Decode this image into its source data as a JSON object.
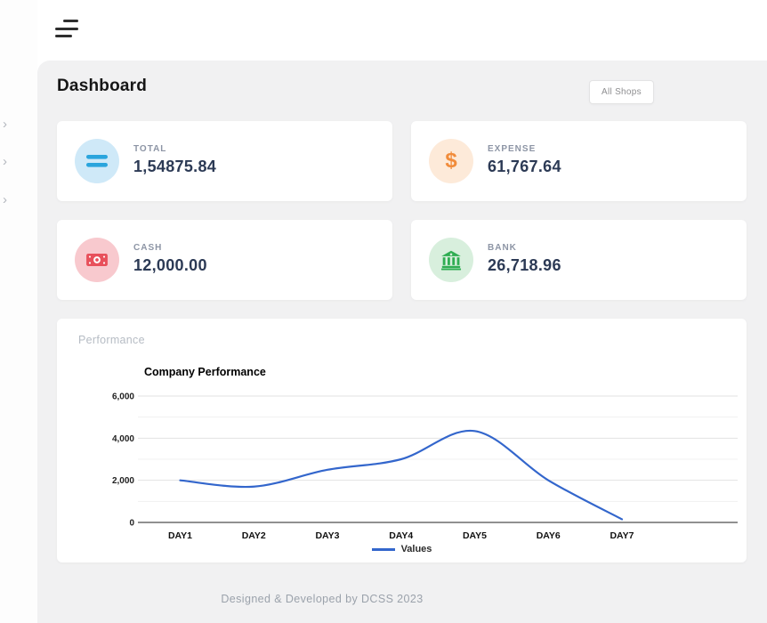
{
  "topbar": {
    "menu_icon": "hamburger-icon"
  },
  "sidebar": {
    "items": [
      {
        "icon": "chevron-right-icon",
        "glyph": "›"
      },
      {
        "icon": "chevron-right-icon",
        "glyph": "›"
      },
      {
        "icon": "chevron-right-icon",
        "glyph": "›"
      }
    ]
  },
  "header": {
    "title": "Dashboard",
    "filter_button": {
      "label": "All Shops"
    }
  },
  "stats": [
    {
      "label": "TOTAL",
      "value": "1,54875.84",
      "icon": "equals-icon",
      "icon_bg": "#cfe9f8",
      "icon_color": "#2aa5dd"
    },
    {
      "label": "EXPENSE",
      "value": "61,767.64",
      "icon": "dollar-icon",
      "icon_bg": "#fdead9",
      "icon_color": "#f18c3b"
    },
    {
      "label": "CASH",
      "value": "12,000.00",
      "icon": "money-bill-icon",
      "icon_bg": "#f8c9ce",
      "icon_color": "#e8505b"
    },
    {
      "label": "BANK",
      "value": "26,718.96",
      "icon": "bank-icon",
      "icon_bg": "#d8efdd",
      "icon_color": "#2fad52"
    }
  ],
  "performance_card": {
    "label": "Performance"
  },
  "chart_data": {
    "type": "line",
    "title": "Company Performance",
    "categories": [
      "DAY1",
      "DAY2",
      "DAY3",
      "DAY4",
      "DAY5",
      "DAY6",
      "DAY7"
    ],
    "series": [
      {
        "name": "Values",
        "values": [
          2000,
          1700,
          2500,
          3000,
          4340,
          2000,
          150
        ],
        "color": "#3366cc"
      }
    ],
    "ylim": [
      0,
      6000
    ],
    "yticks": [
      0,
      2000,
      4000,
      6000
    ],
    "ytick_labels": [
      "0",
      "2,000",
      "4,000",
      "6,000"
    ],
    "minor_yticks": [
      1000,
      3000,
      5000
    ],
    "grid": true,
    "curve": "smooth",
    "legend_position": "bottom",
    "colors": {
      "major_grid": "#e2e2e2",
      "minor_grid": "#f1f1f1",
      "axis": "#4d4d4d",
      "tick_text": "#222222"
    }
  },
  "footer": {
    "text": "Designed & Developed by DCSS 2023"
  }
}
